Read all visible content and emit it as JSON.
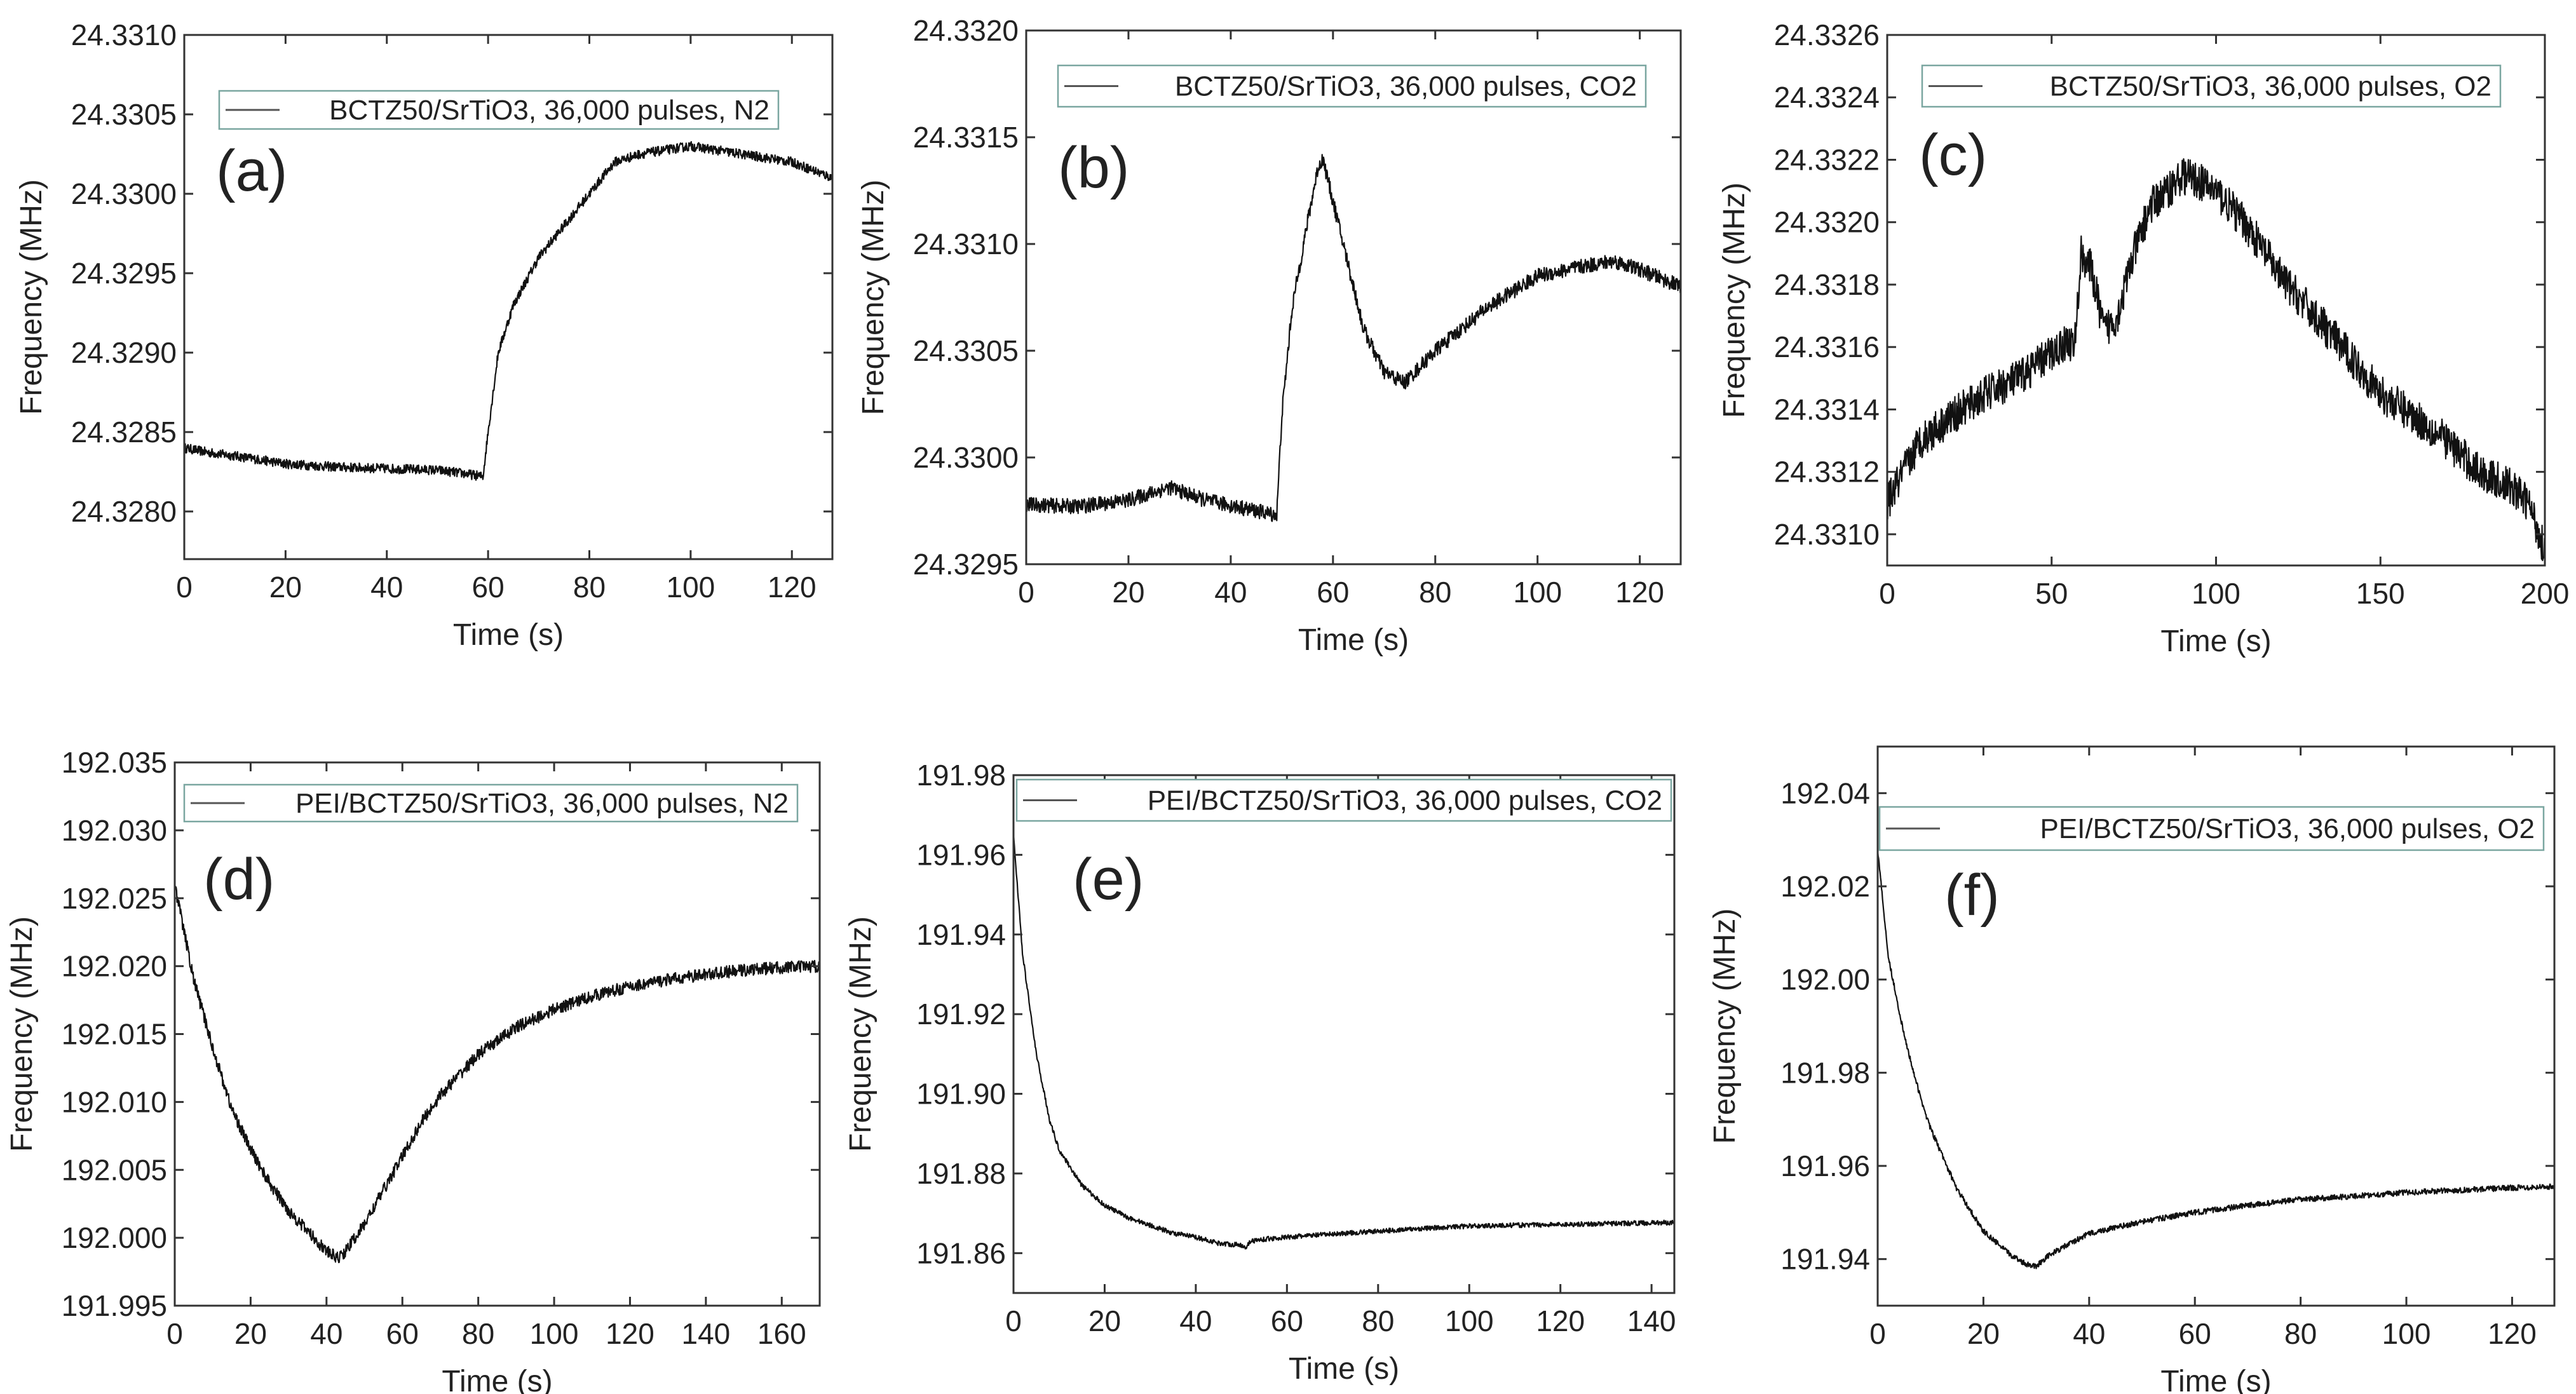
{
  "chart_data": [
    {
      "id": "a",
      "type": "line",
      "panel_label": "(a)",
      "legend": "BCTZ50/SrTiO3, 36,000 pulses, N2",
      "legend_parts": [
        "BCTZ50/SrTiO3,",
        "36,000",
        "pulses, N2"
      ],
      "xlabel": "Time (s)",
      "ylabel": "Frequency (MHz)",
      "xlim": [
        0,
        128
      ],
      "ylim": [
        24.3277,
        24.331
      ],
      "xticks": [
        0,
        20,
        40,
        60,
        80,
        100,
        120
      ],
      "xtick_labels": [
        "0",
        "20",
        "40",
        "60",
        "80",
        "100",
        "120"
      ],
      "yticks": [
        24.328,
        24.3285,
        24.329,
        24.3295,
        24.33,
        24.3305,
        24.331
      ],
      "ytick_labels": [
        "24.3280",
        "24.3285",
        "24.3290",
        "24.3295",
        "24.3300",
        "24.3305",
        "24.3310"
      ],
      "noise": 6e-05,
      "series": [
        {
          "name": "BCTZ50/SrTiO3, 36,000 pulses, N2",
          "x": [
            0,
            5,
            10,
            20,
            30,
            40,
            50,
            55,
            59,
            60,
            62,
            65,
            70,
            75,
            80,
            85,
            90,
            100,
            110,
            120,
            128
          ],
          "y": [
            24.3284,
            24.32837,
            24.32835,
            24.3283,
            24.32828,
            24.32827,
            24.32826,
            24.32824,
            24.32822,
            24.3285,
            24.329,
            24.3293,
            24.3296,
            24.3298,
            24.33,
            24.3302,
            24.33025,
            24.3303,
            24.33025,
            24.3302,
            24.3301
          ]
        }
      ]
    },
    {
      "id": "b",
      "type": "line",
      "panel_label": "(b)",
      "legend": "BCTZ50/SrTiO3, 36,000 pulses, CO2",
      "legend_parts": [
        "BCTZ50/SrTiO3,",
        "36,000",
        "pulses, CO2"
      ],
      "xlabel": "Time (s)",
      "ylabel": "Frequency (MHz)",
      "xlim": [
        0,
        128
      ],
      "ylim": [
        24.3295,
        24.332
      ],
      "xticks": [
        0,
        20,
        40,
        60,
        80,
        100,
        120
      ],
      "xtick_labels": [
        "0",
        "20",
        "40",
        "60",
        "80",
        "100",
        "120"
      ],
      "yticks": [
        24.3295,
        24.33,
        24.3305,
        24.331,
        24.3315,
        24.332
      ],
      "ytick_labels": [
        "24.3295",
        "24.3300",
        "24.3305",
        "24.3310",
        "24.3315",
        "24.3320"
      ],
      "noise": 7e-05,
      "series": [
        {
          "name": "BCTZ50/SrTiO3, 36,000 pulses, CO2",
          "x": [
            0,
            10,
            20,
            28,
            35,
            45,
            49,
            50,
            52,
            55,
            57,
            58,
            62,
            66,
            70,
            74,
            80,
            90,
            100,
            110,
            115,
            120,
            128
          ],
          "y": [
            24.32978,
            24.32977,
            24.3298,
            24.32986,
            24.3298,
            24.32975,
            24.32973,
            24.3302,
            24.3307,
            24.3311,
            24.33135,
            24.3314,
            24.331,
            24.3306,
            24.3304,
            24.33035,
            24.3305,
            24.3307,
            24.33085,
            24.3309,
            24.33092,
            24.33088,
            24.3308
          ]
        }
      ]
    },
    {
      "id": "c",
      "type": "line",
      "panel_label": "(c)",
      "legend": "BCTZ50/SrTiO3, 36,000 pulses, O2",
      "legend_parts": [
        "BCTZ50/SrTiO3,",
        "36,000",
        "pulses, O2"
      ],
      "xlabel": "Time (s)",
      "ylabel": "Frequency (MHz)",
      "xlim": [
        0,
        200
      ],
      "ylim": [
        24.3309,
        24.3326
      ],
      "xticks": [
        0,
        50,
        100,
        150,
        200
      ],
      "xtick_labels": [
        "0",
        "50",
        "100",
        "150",
        "200"
      ],
      "yticks": [
        24.331,
        24.3312,
        24.3314,
        24.3316,
        24.3318,
        24.332,
        24.3322,
        24.3324,
        24.3326
      ],
      "ytick_labels": [
        "24.3310",
        "24.3312",
        "24.3314",
        "24.3316",
        "24.3318",
        "24.3320",
        "24.3322",
        "24.3324",
        "24.3326"
      ],
      "noise": 0.00012,
      "series": [
        {
          "name": "BCTZ50/SrTiO3, 36,000 pulses, O2",
          "x": [
            0,
            10,
            20,
            30,
            40,
            50,
            55,
            57,
            59,
            62,
            66,
            70,
            75,
            80,
            85,
            90,
            95,
            100,
            110,
            120,
            130,
            140,
            150,
            160,
            170,
            180,
            190,
            195,
            200
          ],
          "y": [
            24.3311,
            24.3313,
            24.33138,
            24.33145,
            24.3315,
            24.33158,
            24.33162,
            24.3316,
            24.3319,
            24.33185,
            24.33165,
            24.3317,
            24.3319,
            24.33205,
            24.3321,
            24.33215,
            24.33213,
            24.3321,
            24.33198,
            24.33182,
            24.3317,
            24.33158,
            24.33145,
            24.33138,
            24.3313,
            24.3312,
            24.33115,
            24.3311,
            24.33095
          ]
        }
      ]
    },
    {
      "id": "d",
      "type": "line",
      "panel_label": "(d)",
      "legend": "PEI/BCTZ50/SrTiO3, 36,000 pulses, N2",
      "legend_parts": [
        "PEI/BCTZ50/SrTiO3,",
        "36,000",
        "pulses, N2"
      ],
      "xlabel": "Time (s)",
      "ylabel": "Frequency (MHz)",
      "xlim": [
        0,
        170
      ],
      "ylim": [
        191.995,
        192.035
      ],
      "xticks": [
        0,
        20,
        40,
        60,
        80,
        100,
        120,
        140,
        160
      ],
      "xtick_labels": [
        "0",
        "20",
        "40",
        "60",
        "80",
        "100",
        "120",
        "140",
        "160"
      ],
      "yticks": [
        191.995,
        192.0,
        192.005,
        192.01,
        192.015,
        192.02,
        192.025,
        192.03,
        192.035
      ],
      "ytick_labels": [
        "191.995",
        "192.000",
        "192.005",
        "192.010",
        "192.015",
        "192.020",
        "192.025",
        "192.030",
        "192.035"
      ],
      "noise": 0.0009,
      "series": [
        {
          "name": "PEI/BCTZ50/SrTiO3, 36,000 pulses, N2",
          "x": [
            0,
            5,
            10,
            15,
            20,
            25,
            30,
            35,
            40,
            43,
            45,
            50,
            55,
            60,
            65,
            70,
            80,
            90,
            100,
            110,
            120,
            130,
            140,
            150,
            160,
            170
          ],
          "y": [
            192.026,
            192.019,
            192.014,
            192.0095,
            192.0065,
            192.004,
            192.002,
            192.0005,
            191.999,
            191.9985,
            191.999,
            192.001,
            192.0035,
            192.006,
            192.0085,
            192.0105,
            192.0135,
            192.0155,
            192.0168,
            192.0178,
            192.0185,
            192.019,
            192.0194,
            192.0197,
            192.0199,
            192.02
          ]
        }
      ]
    },
    {
      "id": "e",
      "type": "line",
      "panel_label": "(e)",
      "legend": "PEI/BCTZ50/SrTiO3, 36,000 pulses, CO2",
      "legend_parts": [
        "PEI/BCTZ50/SrTiO3,",
        "36,000",
        "pulses, CO2"
      ],
      "xlabel": "Time (s)",
      "ylabel": "Frequency (MHz)",
      "xlim": [
        0,
        145
      ],
      "ylim": [
        191.85,
        191.98
      ],
      "xticks": [
        0,
        20,
        40,
        60,
        80,
        100,
        120,
        140
      ],
      "xtick_labels": [
        "0",
        "20",
        "40",
        "60",
        "80",
        "100",
        "120",
        "140"
      ],
      "yticks": [
        191.86,
        191.88,
        191.9,
        191.92,
        191.94,
        191.96,
        191.98
      ],
      "ytick_labels": [
        "191.86",
        "191.88",
        "191.90",
        "191.92",
        "191.94",
        "191.96",
        "191.98"
      ],
      "noise": 0.0012,
      "series": [
        {
          "name": "PEI/BCTZ50/SrTiO3, 36,000 pulses, CO2",
          "x": [
            0,
            2,
            5,
            8,
            10,
            15,
            20,
            25,
            30,
            35,
            40,
            45,
            50,
            51,
            52,
            55,
            60,
            70,
            80,
            90,
            100,
            110,
            120,
            130,
            145
          ],
          "y": [
            191.965,
            191.935,
            191.91,
            191.893,
            191.886,
            191.877,
            191.872,
            191.869,
            191.867,
            191.865,
            191.864,
            191.8625,
            191.862,
            191.8615,
            191.863,
            191.8635,
            191.864,
            191.8648,
            191.8655,
            191.8662,
            191.8668,
            191.867,
            191.8672,
            191.8674,
            191.8677
          ]
        }
      ]
    },
    {
      "id": "f",
      "type": "line",
      "panel_label": "(f)",
      "legend": "PEI/BCTZ50/SrTiO3, 36,000 pulses, O2",
      "legend_parts": [
        "PEI/BCTZ50/SrTiO3,",
        "36,000",
        "pulses, O2"
      ],
      "xlabel": "Time (s)",
      "ylabel": "Frequency (MHz)",
      "xlim": [
        0,
        128
      ],
      "ylim": [
        191.93,
        192.05
      ],
      "xticks": [
        0,
        20,
        40,
        60,
        80,
        100,
        120
      ],
      "xtick_labels": [
        "0",
        "20",
        "40",
        "60",
        "80",
        "100",
        "120"
      ],
      "yticks": [
        191.94,
        191.96,
        191.98,
        192.0,
        192.02,
        192.04
      ],
      "ytick_labels": [
        "191.94",
        "191.96",
        "191.98",
        "192.00",
        "192.02",
        "192.04"
      ],
      "noise": 0.0012,
      "series": [
        {
          "name": "PEI/BCTZ50/SrTiO3, 36,000 pulses, O2",
          "x": [
            0,
            2,
            5,
            8,
            10,
            15,
            20,
            25,
            28,
            30,
            32,
            35,
            40,
            50,
            60,
            70,
            80,
            90,
            100,
            110,
            120,
            128
          ],
          "y": [
            192.028,
            192.005,
            191.988,
            191.975,
            191.968,
            191.955,
            191.946,
            191.941,
            191.939,
            191.9385,
            191.9405,
            191.9425,
            191.9455,
            191.948,
            191.95,
            191.9515,
            191.9528,
            191.9535,
            191.9543,
            191.9548,
            191.9553,
            191.9556
          ]
        }
      ]
    }
  ]
}
